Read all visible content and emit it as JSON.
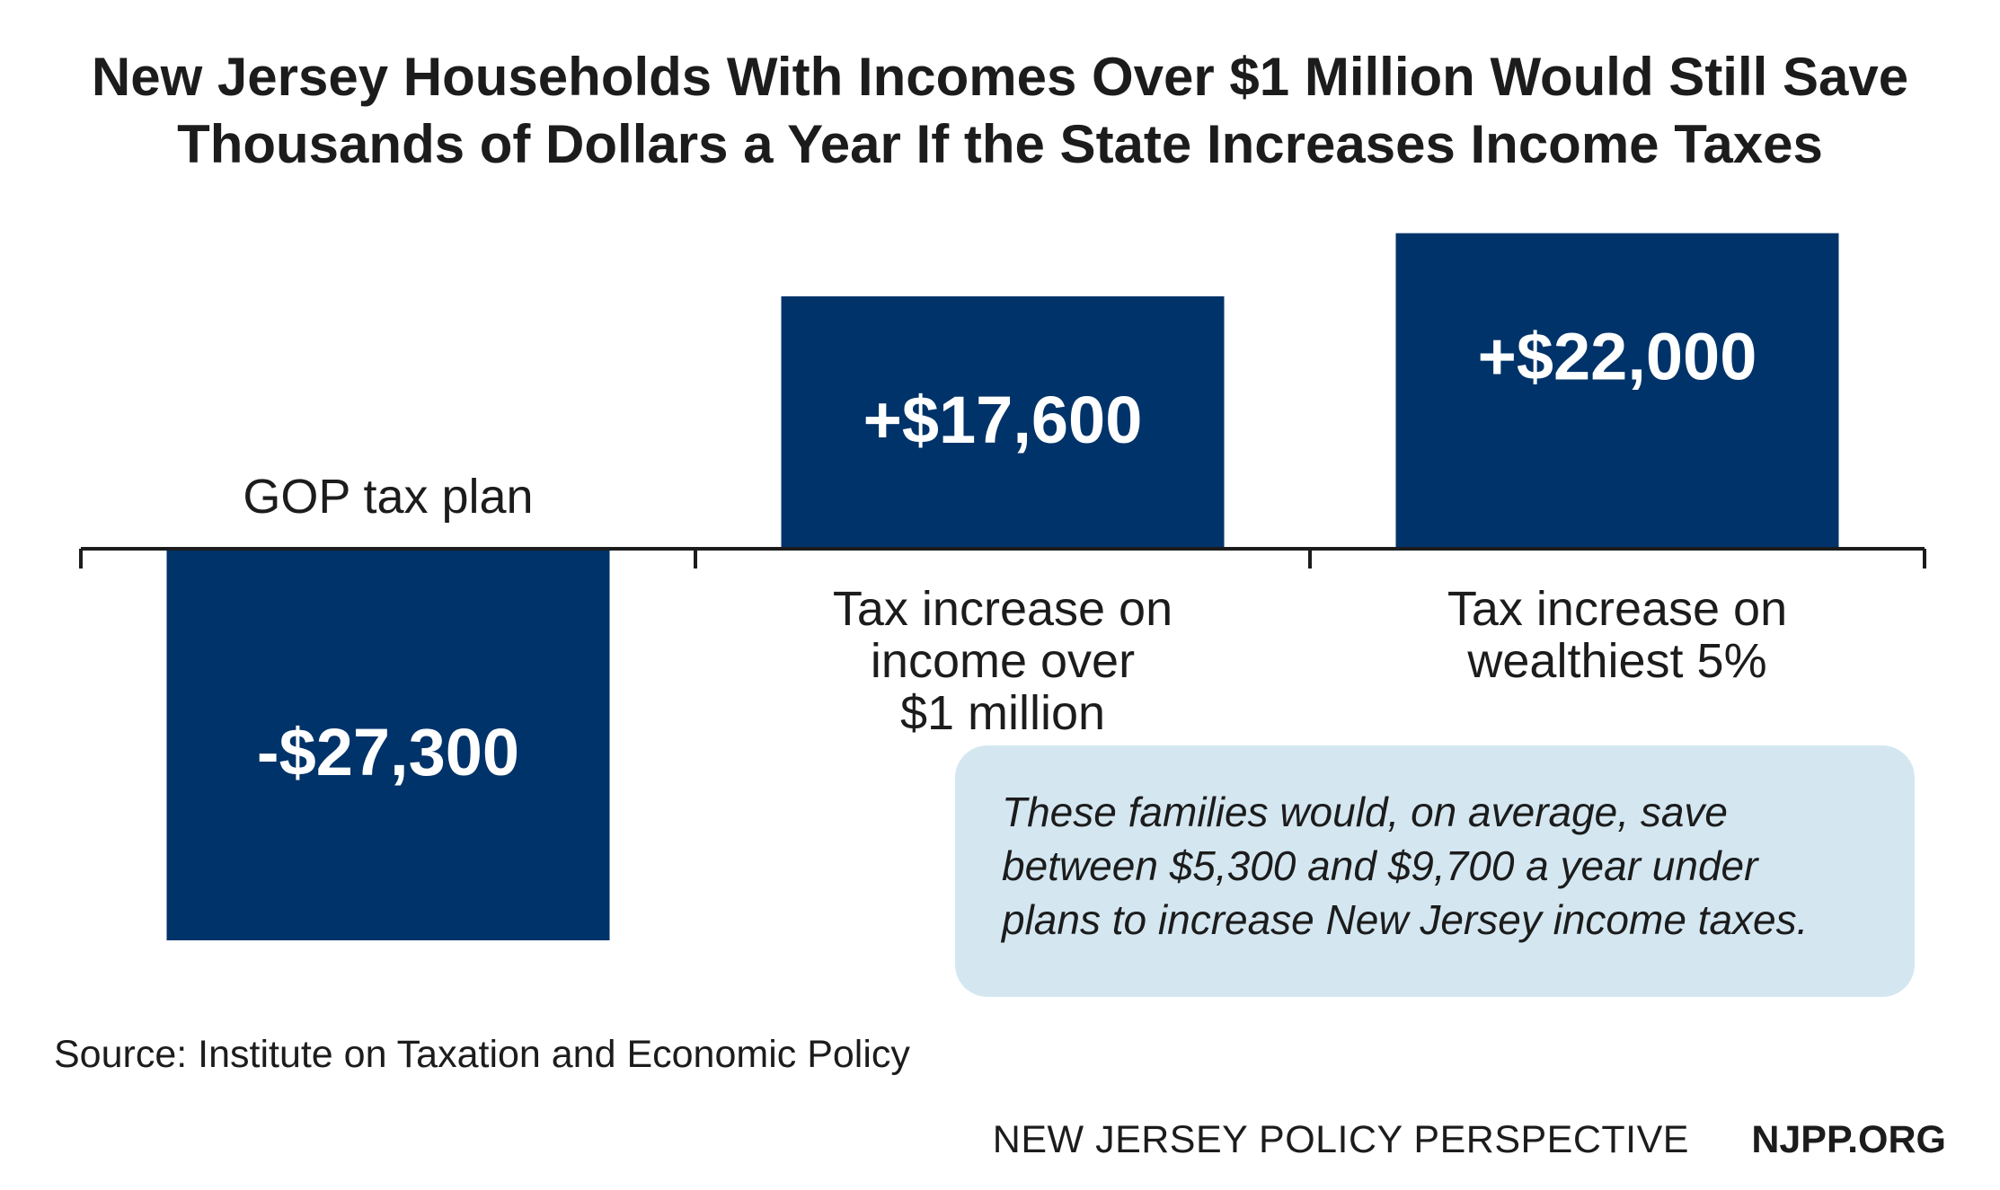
{
  "title_lines": [
    "New Jersey Households With Incomes Over $1 Million Would Still Save",
    "Thousands of Dollars a Year If the State Increases Income Taxes"
  ],
  "chart_data": {
    "type": "bar",
    "categories": [
      [
        "GOP tax plan"
      ],
      [
        "Tax increase on",
        "income over",
        "$1 million"
      ],
      [
        "Tax increase on",
        "wealthiest 5%"
      ]
    ],
    "values": [
      -27300,
      17600,
      22000
    ],
    "value_labels": [
      "-$27,300",
      "+$17,600",
      "+$22,000"
    ],
    "bar_color": "#003369",
    "grid": false
  },
  "note_lines": [
    "These families would, on average, save",
    "between $5,300 and $9,700 a year under",
    "plans to increase New Jersey income taxes."
  ],
  "note_color": "#d4e7f1",
  "source": "Source: Institute on Taxation and Economic Policy",
  "footer": {
    "org": "NEW JERSEY POLICY PERSPECTIVE",
    "url": "NJPP.ORG"
  }
}
